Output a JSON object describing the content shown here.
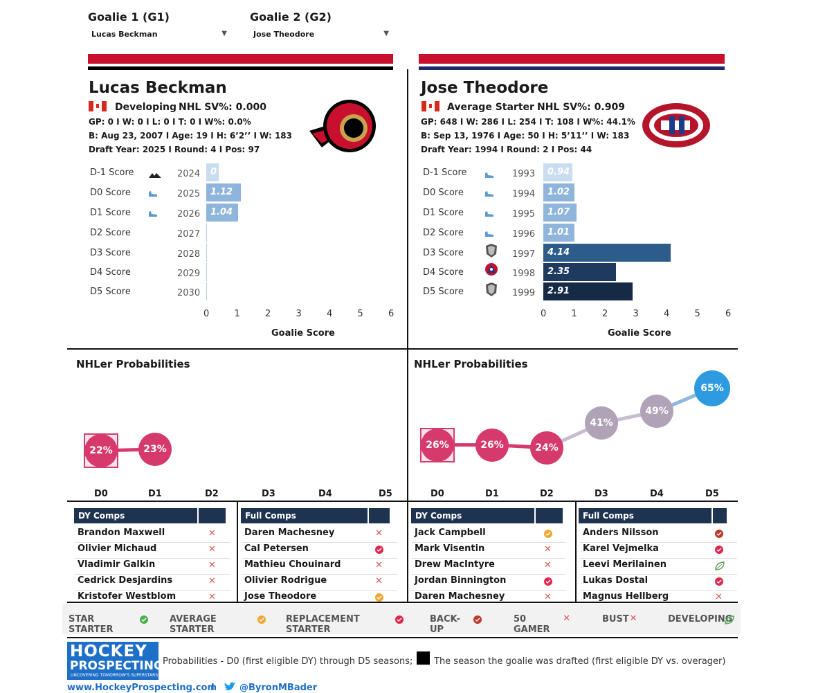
{
  "selectors": {
    "g1_title": "Goalie 1 (G1)",
    "g1_value": "Lucas Beckman",
    "g2_title": "Goalie 2 (G2)",
    "g2_value": "Jose Theodore"
  },
  "g1": {
    "name": "Lucas Beckman",
    "status": "Developing",
    "sv": "NHL SV%: 0.000",
    "stats": "GP: 0 I W: 0 I L: 0  I T: 0  I W%: 0.0%",
    "bio": "B: Aug 23, 2007 I Age: 19 I H: 6’2’’ I W: 183",
    "draft": "Draft Year: 2025 I Round: 4 I Pos: 97",
    "team_color": "#c8102e",
    "scores": [
      {
        "label": "D-1 Score",
        "year": "2024",
        "value": 0.4,
        "text": "0"
      },
      {
        "label": "D0 Score",
        "year": "2025",
        "value": 1.12,
        "text": "1.12"
      },
      {
        "label": "D1 Score",
        "year": "2026",
        "value": 1.04,
        "text": "1.04"
      },
      {
        "label": "D2  Score",
        "year": "2027",
        "value": 0,
        "text": ""
      },
      {
        "label": "D3 Score",
        "year": "2028",
        "value": 0,
        "text": ""
      },
      {
        "label": "D4 Score",
        "year": "2029",
        "value": 0,
        "text": ""
      },
      {
        "label": "D5 Score",
        "year": "2030",
        "value": 0,
        "text": ""
      }
    ],
    "prob": [
      {
        "label": "22%",
        "v": 22
      },
      {
        "label": "23%",
        "v": 23
      }
    ],
    "dy_comps": [
      {
        "name": "Brandon Maxwell",
        "mark": "x"
      },
      {
        "name": "Olivier Michaud",
        "mark": "x"
      },
      {
        "name": "Vladimir Galkin",
        "mark": "x"
      },
      {
        "name": "Cedrick Desjardins",
        "mark": "x"
      },
      {
        "name": "Kristofer Westblom",
        "mark": "x"
      }
    ],
    "full_comps": [
      {
        "name": "Daren Machesney",
        "mark": "x"
      },
      {
        "name": "Cal Petersen",
        "mark": "replacement"
      },
      {
        "name": "Mathieu Chouinard",
        "mark": "x"
      },
      {
        "name": "Olivier Rodrigue",
        "mark": "x"
      },
      {
        "name": "Jose Theodore",
        "mark": "average"
      }
    ]
  },
  "g2": {
    "name": "Jose Theodore",
    "status": "Average Starter",
    "sv": "NHL SV%: 0.909",
    "stats": "GP: 648 I W: 286 I L: 254  I T: 108  I W%: 44.1%",
    "bio": "B: Sep 13, 1976 I Age: 50 I H: 5’11’’ I W: 183",
    "draft": "Draft Year: 1994 I Round: 2 I Pos: 44",
    "team_color": "#1e3a8a",
    "scores": [
      {
        "label": "D-1 Score",
        "year": "1993",
        "value": 0.94,
        "text": "0.94"
      },
      {
        "label": "D0 Score",
        "year": "1994",
        "value": 1.02,
        "text": "1.02"
      },
      {
        "label": "D1 Score",
        "year": "1995",
        "value": 1.07,
        "text": "1.07"
      },
      {
        "label": "D2  Score",
        "year": "1996",
        "value": 1.01,
        "text": "1.01"
      },
      {
        "label": "D3 Score",
        "year": "1997",
        "value": 4.14,
        "text": "4.14"
      },
      {
        "label": "D4 Score",
        "year": "1998",
        "value": 2.35,
        "text": "2.35"
      },
      {
        "label": "D5 Score",
        "year": "1999",
        "value": 2.91,
        "text": "2.91"
      }
    ],
    "prob": [
      {
        "label": "26%",
        "v": 26
      },
      {
        "label": "26%",
        "v": 26
      },
      {
        "label": "24%",
        "v": 24
      },
      {
        "label": "41%",
        "v": 41
      },
      {
        "label": "49%",
        "v": 49
      },
      {
        "label": "65%",
        "v": 65
      }
    ],
    "dy_comps": [
      {
        "name": "Jack Campbell",
        "mark": "average"
      },
      {
        "name": "Mark Visentin",
        "mark": "x"
      },
      {
        "name": "Drew MacIntyre",
        "mark": "x"
      },
      {
        "name": "Jordan Binnington",
        "mark": "replacement"
      },
      {
        "name": "Daren Machesney",
        "mark": "x"
      }
    ],
    "full_comps": [
      {
        "name": "Anders Nilsson",
        "mark": "backup"
      },
      {
        "name": "Karel Vejmelka",
        "mark": "replacement"
      },
      {
        "name": "Leevi Merilainen",
        "mark": "developing"
      },
      {
        "name": "Lukas Dostal",
        "mark": "replacement"
      },
      {
        "name": "Magnus Hellberg",
        "mark": "x"
      }
    ]
  },
  "labels": {
    "goalie_score": "Goalie Score",
    "nhler_prob": "NHLer Probabilities",
    "dy_comps": "DY Comps",
    "full_comps": "Full Comps",
    "d_labels": [
      "D0",
      "D1",
      "D2",
      "D3",
      "D4",
      "D5"
    ],
    "ticks": [
      "0",
      "1",
      "2",
      "3",
      "4",
      "5",
      "6"
    ]
  },
  "legend": [
    {
      "label": "STAR STARTER",
      "mark": "star"
    },
    {
      "label": "AVERAGE STARTER",
      "mark": "average"
    },
    {
      "label": "REPLACEMENT STARTER",
      "mark": "replacement"
    },
    {
      "label": "BACK-UP",
      "mark": "backup"
    },
    {
      "label": "50 GAMER",
      "mark": "x"
    },
    {
      "label": "BUST",
      "mark": "x"
    },
    {
      "label": "DEVELOPING",
      "mark": "developing"
    }
  ],
  "footer": {
    "logo_top": "HOCKEY",
    "logo_mid": "PROSPECTING",
    "logo_sub": "UNCOVERING TOMORROW'S SUPERSTARS",
    "note1": "Probabilities - D0 (first eligible DY) through D5 seasons;",
    "note2": "The season the goalie was drafted (first eligible DY vs. overager)",
    "site": "www.HockeyProspecting.com",
    "sep": "I",
    "twitter": "@ByronMBader"
  },
  "colors": {
    "star": "#4caf50",
    "average": "#f0a830",
    "replacement": "#e0284e",
    "backup": "#c0392b",
    "x": "#e05555",
    "developing": "#5aa55a"
  }
}
